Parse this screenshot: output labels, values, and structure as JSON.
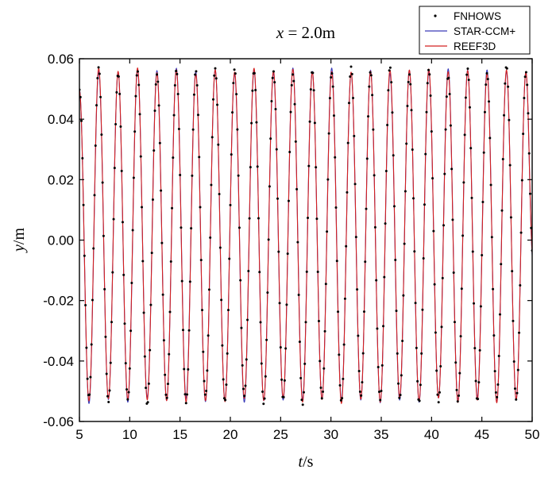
{
  "chart_data": {
    "type": "line",
    "title": {
      "var": "x",
      "rest": " = 2.0m"
    },
    "xlabel": {
      "var": "t",
      "unit": "/s"
    },
    "ylabel": {
      "var": "y",
      "unit": "/m"
    },
    "xlim": [
      5,
      50
    ],
    "ylim": [
      -0.06,
      0.06
    ],
    "x_ticks": [
      "5",
      "10",
      "15",
      "20",
      "25",
      "30",
      "35",
      "40",
      "45",
      "50"
    ],
    "y_ticks": [
      "0.06",
      "0.04",
      "0.02",
      "0.00",
      "-0.02",
      "-0.04",
      "-0.06"
    ],
    "grid": false,
    "legend_position": "top-right",
    "wave": {
      "period_s": 1.93,
      "first_trough_t": 5.95,
      "crest": 0.056,
      "trough": -0.053,
      "start_value": 0.05,
      "end_value": -0.004
    },
    "series": [
      {
        "name": "FNHOWS",
        "style": "dots",
        "color": "#000000",
        "dt": 0.1
      },
      {
        "name": "STAR-CCM+",
        "style": "line",
        "color": "#3a3ab8",
        "dt": 0.02
      },
      {
        "name": "REEF3D",
        "style": "line",
        "color": "#d42020",
        "dt": 0.02
      }
    ]
  }
}
